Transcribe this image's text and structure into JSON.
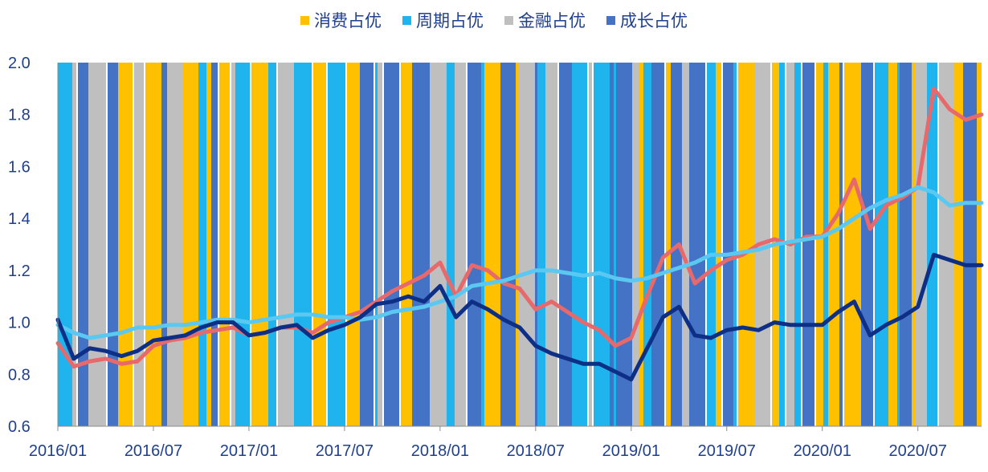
{
  "chart_data": {
    "type": "line",
    "legend": {
      "placement": "top-center",
      "entries": [
        {
          "label": "消费占优",
          "color": "#ffc000"
        },
        {
          "label": "周期占优",
          "color": "#1fb4ee"
        },
        {
          "label": "金融占优",
          "color": "#bfbfbf"
        },
        {
          "label": "成长占优",
          "color": "#4472c4"
        }
      ]
    },
    "xticks": [
      "2016/01",
      "2016/07",
      "2017/01",
      "2017/07",
      "2018/01",
      "2018/07",
      "2019/01",
      "2019/07",
      "2020/01",
      "2020/07"
    ],
    "yticks": [
      "0.6",
      "0.8",
      "1.0",
      "1.2",
      "1.4",
      "1.6",
      "1.8",
      "2.0"
    ],
    "ylim": [
      0.6,
      2.0
    ],
    "xlim": [
      "2016-01",
      "2020-11"
    ],
    "grid": false,
    "background_regimes": "alternating vertical bands coloured by the leading style (消费/周期/金融/成长)",
    "series": [
      {
        "color": "#e8696b",
        "x": [
          "2016-01",
          "2016-02",
          "2016-03",
          "2016-04",
          "2016-05",
          "2016-06",
          "2016-07",
          "2016-08",
          "2016-09",
          "2016-10",
          "2016-11",
          "2016-12",
          "2017-01",
          "2017-02",
          "2017-03",
          "2017-04",
          "2017-05",
          "2017-06",
          "2017-07",
          "2017-08",
          "2017-09",
          "2017-10",
          "2017-11",
          "2017-12",
          "2018-01",
          "2018-02",
          "2018-03",
          "2018-04",
          "2018-05",
          "2018-06",
          "2018-07",
          "2018-08",
          "2018-09",
          "2018-10",
          "2018-11",
          "2018-12",
          "2019-01",
          "2019-02",
          "2019-03",
          "2019-04",
          "2019-05",
          "2019-06",
          "2019-07",
          "2019-08",
          "2019-09",
          "2019-10",
          "2019-11",
          "2019-12",
          "2020-01",
          "2020-02",
          "2020-03",
          "2020-04",
          "2020-05",
          "2020-06",
          "2020-07",
          "2020-08",
          "2020-09",
          "2020-10",
          "2020-11"
        ],
        "values": [
          0.92,
          0.83,
          0.85,
          0.86,
          0.84,
          0.85,
          0.91,
          0.93,
          0.94,
          0.96,
          0.97,
          0.98,
          0.95,
          0.96,
          0.98,
          0.98,
          0.96,
          1.0,
          1.02,
          1.04,
          1.08,
          1.12,
          1.15,
          1.18,
          1.23,
          1.1,
          1.22,
          1.2,
          1.15,
          1.13,
          1.05,
          1.08,
          1.04,
          1.0,
          0.97,
          0.91,
          0.94,
          1.1,
          1.25,
          1.3,
          1.15,
          1.2,
          1.24,
          1.26,
          1.3,
          1.32,
          1.3,
          1.33,
          1.33,
          1.42,
          1.55,
          1.36,
          1.45,
          1.48,
          1.52,
          1.9,
          1.82,
          1.78,
          1.8
        ]
      },
      {
        "color": "#5ac8f0",
        "x": [
          "2016-01",
          "2016-02",
          "2016-03",
          "2016-04",
          "2016-05",
          "2016-06",
          "2016-07",
          "2016-08",
          "2016-09",
          "2016-10",
          "2016-11",
          "2016-12",
          "2017-01",
          "2017-02",
          "2017-03",
          "2017-04",
          "2017-05",
          "2017-06",
          "2017-07",
          "2017-08",
          "2017-09",
          "2017-10",
          "2017-11",
          "2017-12",
          "2018-01",
          "2018-02",
          "2018-03",
          "2018-04",
          "2018-05",
          "2018-06",
          "2018-07",
          "2018-08",
          "2018-09",
          "2018-10",
          "2018-11",
          "2018-12",
          "2019-01",
          "2019-02",
          "2019-03",
          "2019-04",
          "2019-05",
          "2019-06",
          "2019-07",
          "2019-08",
          "2019-09",
          "2019-10",
          "2019-11",
          "2019-12",
          "2020-01",
          "2020-02",
          "2020-03",
          "2020-04",
          "2020-05",
          "2020-06",
          "2020-07",
          "2020-08",
          "2020-09",
          "2020-10",
          "2020-11"
        ],
        "values": [
          0.99,
          0.96,
          0.94,
          0.95,
          0.96,
          0.98,
          0.98,
          0.99,
          0.99,
          1.0,
          1.01,
          1.01,
          1.0,
          1.01,
          1.02,
          1.03,
          1.03,
          1.02,
          1.02,
          1.01,
          1.02,
          1.04,
          1.05,
          1.06,
          1.08,
          1.1,
          1.14,
          1.15,
          1.16,
          1.18,
          1.2,
          1.2,
          1.19,
          1.18,
          1.19,
          1.17,
          1.16,
          1.17,
          1.19,
          1.21,
          1.23,
          1.26,
          1.26,
          1.27,
          1.28,
          1.3,
          1.31,
          1.32,
          1.33,
          1.36,
          1.4,
          1.44,
          1.47,
          1.49,
          1.52,
          1.5,
          1.45,
          1.46,
          1.46
        ]
      },
      {
        "color": "#0d2f86",
        "x": [
          "2016-01",
          "2016-02",
          "2016-03",
          "2016-04",
          "2016-05",
          "2016-06",
          "2016-07",
          "2016-08",
          "2016-09",
          "2016-10",
          "2016-11",
          "2016-12",
          "2017-01",
          "2017-02",
          "2017-03",
          "2017-04",
          "2017-05",
          "2017-06",
          "2017-07",
          "2017-08",
          "2017-09",
          "2017-10",
          "2017-11",
          "2017-12",
          "2018-01",
          "2018-02",
          "2018-03",
          "2018-04",
          "2018-05",
          "2018-06",
          "2018-07",
          "2018-08",
          "2018-09",
          "2018-10",
          "2018-11",
          "2018-12",
          "2019-01",
          "2019-02",
          "2019-03",
          "2019-04",
          "2019-05",
          "2019-06",
          "2019-07",
          "2019-08",
          "2019-09",
          "2019-10",
          "2019-11",
          "2019-12",
          "2020-01",
          "2020-02",
          "2020-03",
          "2020-04",
          "2020-05",
          "2020-06",
          "2020-07",
          "2020-08",
          "2020-09",
          "2020-10",
          "2020-11"
        ],
        "values": [
          1.01,
          0.86,
          0.9,
          0.89,
          0.87,
          0.89,
          0.93,
          0.94,
          0.95,
          0.98,
          1.0,
          1.0,
          0.95,
          0.96,
          0.98,
          0.99,
          0.94,
          0.97,
          0.99,
          1.02,
          1.07,
          1.08,
          1.1,
          1.08,
          1.14,
          1.02,
          1.08,
          1.05,
          1.01,
          0.98,
          0.91,
          0.88,
          0.86,
          0.84,
          0.84,
          0.81,
          0.78,
          0.9,
          1.02,
          1.06,
          0.95,
          0.94,
          0.97,
          0.98,
          0.97,
          1.0,
          0.99,
          0.99,
          0.99,
          1.04,
          1.08,
          0.95,
          0.99,
          1.02,
          1.06,
          1.26,
          1.24,
          1.22,
          1.22
        ]
      }
    ]
  }
}
